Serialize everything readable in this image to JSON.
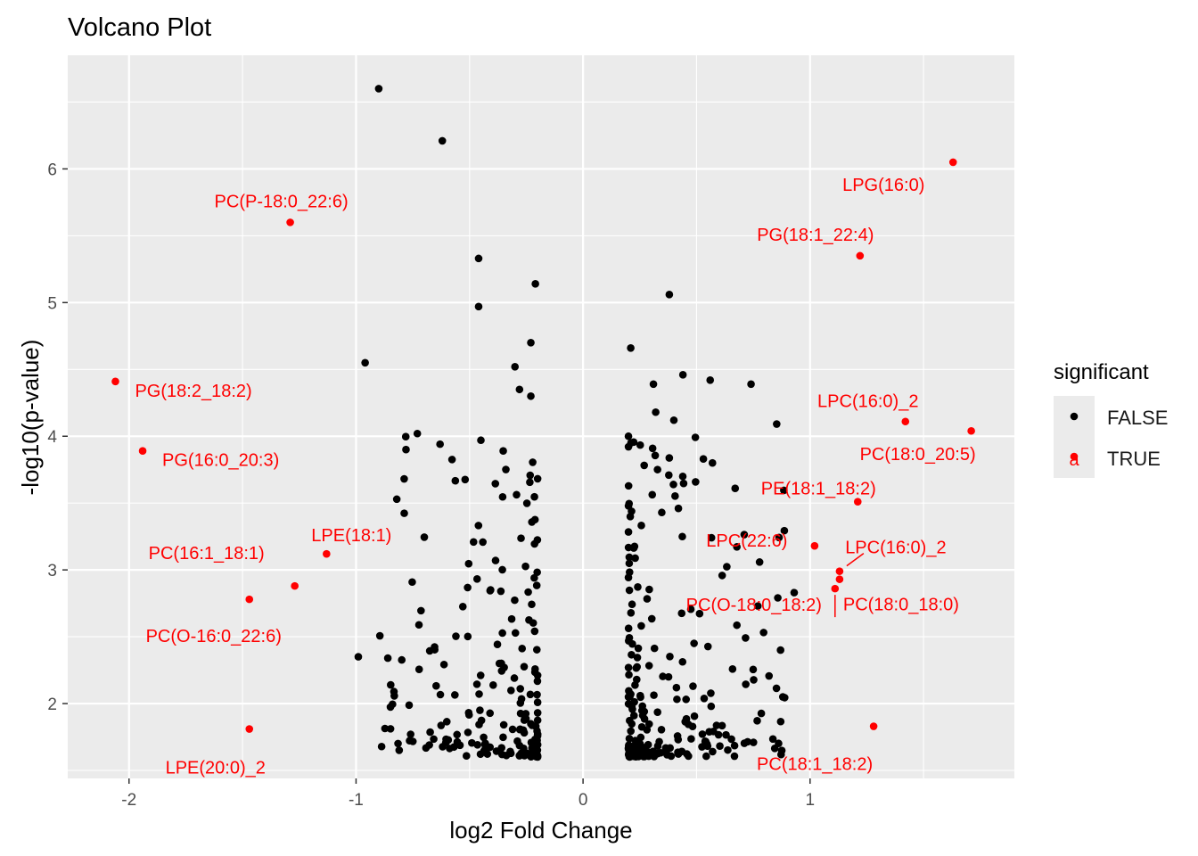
{
  "chart_data": {
    "type": "scatter",
    "title": "Volcano Plot",
    "xlabel": "log2 Fold Change",
    "ylabel": "-log10(p-value)",
    "xlim": [
      -2.27,
      1.9
    ],
    "ylim": [
      1.44,
      6.85
    ],
    "x_ticks": [
      -2,
      -1,
      0,
      1
    ],
    "x_tick_labels": [
      "-2",
      "-1",
      "0",
      "1"
    ],
    "y_ticks": [
      2,
      3,
      4,
      5,
      6
    ],
    "y_tick_labels": [
      "2",
      "3",
      "4",
      "5",
      "6"
    ],
    "grid": true,
    "legend": {
      "title": "significant",
      "position": "right",
      "entries": [
        {
          "label": "FALSE",
          "color": "#000000"
        },
        {
          "label": "TRUE",
          "color": "#ff0000",
          "key_text": "a"
        }
      ]
    },
    "colors": {
      "false": "#000000",
      "true": "#ff0000",
      "panel": "#ebebeb",
      "grid": "#ffffff"
    },
    "series": [
      {
        "name": "TRUE",
        "points": [
          {
            "x": 1.63,
            "y": 6.05,
            "label": "LPG(16:0)"
          },
          {
            "x": 1.22,
            "y": 5.35,
            "label": "PG(18:1_22:4)"
          },
          {
            "x": -1.29,
            "y": 5.6,
            "label": "PC(P-18:0_22:6)"
          },
          {
            "x": -2.06,
            "y": 4.41,
            "label": "PG(18:2_18:2)"
          },
          {
            "x": -1.94,
            "y": 3.89,
            "label": "PG(16:0_20:3)"
          },
          {
            "x": 1.42,
            "y": 4.11,
            "label": "LPC(16:0)_2"
          },
          {
            "x": 1.71,
            "y": 4.04,
            "label": "PC(18:0_20:5)"
          },
          {
            "x": 1.21,
            "y": 3.51,
            "label": "PE(18:1_18:2)"
          },
          {
            "x": -1.13,
            "y": 3.12,
            "label": "LPE(18:1)"
          },
          {
            "x": 1.02,
            "y": 3.18,
            "label": "LPC(22:6)"
          },
          {
            "x": 1.13,
            "y": 2.99,
            "label": "LPC(16:0)_2"
          },
          {
            "x": 1.13,
            "y": 2.93,
            "label": "PC(18:0_18:0)"
          },
          {
            "x": 1.11,
            "y": 2.86,
            "label": "PC(O-18:0_18:2)"
          },
          {
            "x": -1.27,
            "y": 2.88,
            "label": "PC(16:1_18:1)"
          },
          {
            "x": -1.47,
            "y": 2.78,
            "label": "PC(O-16:0_22:6)"
          },
          {
            "x": -1.47,
            "y": 1.81,
            "label": "LPE(20:0)_2"
          },
          {
            "x": 1.28,
            "y": 1.83,
            "label": "PC(18:1_18:2)"
          }
        ]
      }
    ]
  }
}
